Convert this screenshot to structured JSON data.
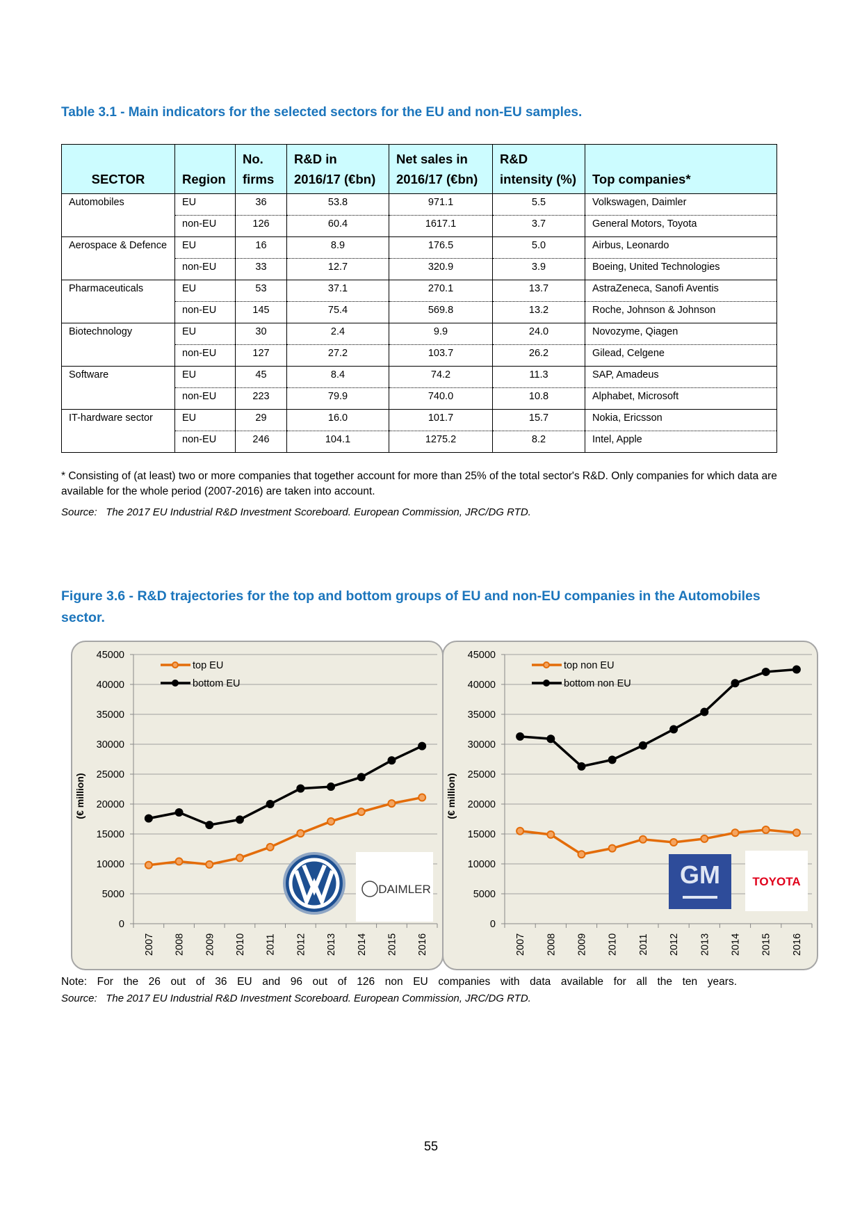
{
  "table_title": "Table 3.1 - Main indicators for the selected sectors for the EU and non-EU samples.",
  "table": {
    "header": [
      "SECTOR",
      "Region",
      "No. firms",
      "R&D in 2016/17 (€bn)",
      "Net sales in 2016/17 (€bn)",
      "R&D intensity (%)",
      "Top companies*"
    ],
    "groups": [
      {
        "sector": "Automobiles",
        "rows": [
          [
            "EU",
            "36",
            "53.8",
            "971.1",
            "5.5",
            "Volkswagen, Daimler"
          ],
          [
            "non-EU",
            "126",
            "60.4",
            "1617.1",
            "3.7",
            "General Motors, Toyota"
          ]
        ]
      },
      {
        "sector": "Aerospace & Defence",
        "rows": [
          [
            "EU",
            "16",
            "8.9",
            "176.5",
            "5.0",
            "Airbus, Leonardo"
          ],
          [
            "non-EU",
            "33",
            "12.7",
            "320.9",
            "3.9",
            "Boeing, United Technologies"
          ]
        ]
      },
      {
        "sector": "Pharmaceuticals",
        "rows": [
          [
            "EU",
            "53",
            "37.1",
            "270.1",
            "13.7",
            "AstraZeneca, Sanofi Aventis"
          ],
          [
            "non-EU",
            "145",
            "75.4",
            "569.8",
            "13.2",
            "Roche, Johnson & Johnson"
          ]
        ]
      },
      {
        "sector": "Biotechnology",
        "rows": [
          [
            "EU",
            "30",
            "2.4",
            "9.9",
            "24.0",
            "Novozyme, Qiagen"
          ],
          [
            "non-EU",
            "127",
            "27.2",
            "103.7",
            "26.2",
            "Gilead, Celgene"
          ]
        ]
      },
      {
        "sector": "Software",
        "rows": [
          [
            "EU",
            "45",
            "8.4",
            "74.2",
            "11.3",
            "SAP, Amadeus"
          ],
          [
            "non-EU",
            "223",
            "79.9",
            "740.0",
            "10.8",
            "Alphabet, Microsoft"
          ]
        ]
      },
      {
        "sector": "IT-hardware sector",
        "rows": [
          [
            "EU",
            "29",
            "16.0",
            "101.7",
            "15.7",
            "Nokia, Ericsson"
          ],
          [
            "non-EU",
            "246",
            "104.1",
            "1275.2",
            "8.2",
            "Intel, Apple"
          ]
        ]
      }
    ]
  },
  "table_footnote": "* Consisting of (at least) two or more companies that together account for more than 25% of the total sector's R&D. Only companies for which data are available for the whole period (2007-2016) are taken into account.",
  "table_source": "Source:   The 2017 EU Industrial R&D Investment Scoreboard. European Commission, JRC/DG RTD.",
  "figure_title": "Figure 3.6 - R&D trajectories for the top and bottom groups of EU and non-EU companies in the Automobiles sector.",
  "chart_data": [
    {
      "type": "line",
      "ylabel": "(€ million)",
      "categories": [
        "2007",
        "2008",
        "2009",
        "2010",
        "2011",
        "2012",
        "2013",
        "2014",
        "2015",
        "2016"
      ],
      "series": [
        {
          "name": "top EU",
          "color": "#e36c09",
          "values": [
            9800,
            10400,
            9900,
            11000,
            12800,
            15100,
            17100,
            18700,
            20100,
            21100
          ]
        },
        {
          "name": "bottom EU",
          "color": "#000000",
          "values": [
            17600,
            18600,
            16500,
            17400,
            20000,
            22600,
            22900,
            24500,
            27300,
            29700
          ]
        }
      ],
      "ylim": [
        0,
        45000
      ],
      "yticks": [
        0,
        5000,
        10000,
        15000,
        20000,
        25000,
        30000,
        35000,
        40000,
        45000
      ],
      "grid": true,
      "legend": "upper left",
      "logos": [
        "DAIMLER"
      ]
    },
    {
      "type": "line",
      "ylabel": "(€ million)",
      "categories": [
        "2007",
        "2008",
        "2009",
        "2010",
        "2011",
        "2012",
        "2013",
        "2014",
        "2015",
        "2016"
      ],
      "series": [
        {
          "name": "top non EU",
          "color": "#e36c09",
          "values": [
            15500,
            14900,
            11600,
            12600,
            14100,
            13600,
            14200,
            15200,
            15700,
            15200
          ]
        },
        {
          "name": "bottom non EU",
          "color": "#000000",
          "values": [
            31300,
            30900,
            26300,
            27400,
            29800,
            32500,
            35400,
            40200,
            42100,
            42500
          ]
        }
      ],
      "ylim": [
        0,
        45000
      ],
      "yticks": [
        0,
        5000,
        10000,
        15000,
        20000,
        25000,
        30000,
        35000,
        40000,
        45000
      ],
      "grid": true,
      "legend": "upper left",
      "logos": [
        "GM",
        "TOYOTA"
      ]
    }
  ],
  "figure_note": "Note: For the 26 out of 36 EU and 96 out of 126 non EU companies with data available for all the ten years.",
  "figure_source": "Source:   The 2017 EU Industrial R&D Investment Scoreboard. European Commission, JRC/DG RTD.",
  "page_number": "55"
}
